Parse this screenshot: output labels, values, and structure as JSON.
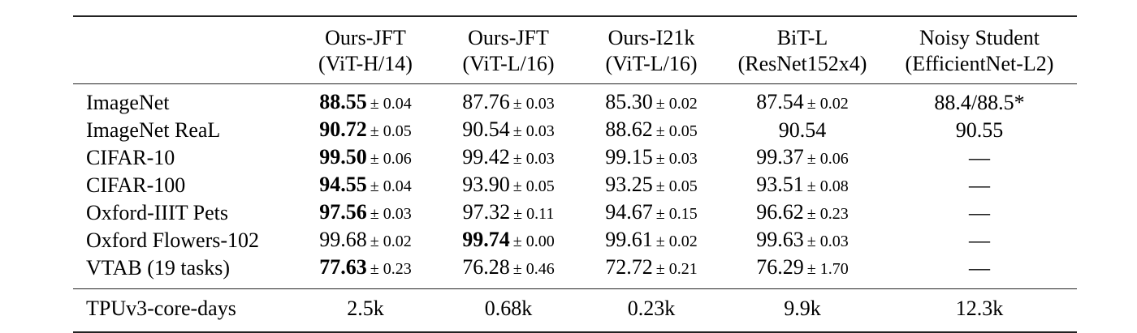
{
  "columns": [
    {
      "line1": "",
      "line2": ""
    },
    {
      "line1": "Ours-JFT",
      "line2": "(ViT-H/14)"
    },
    {
      "line1": "Ours-JFT",
      "line2": "(ViT-L/16)"
    },
    {
      "line1": "Ours-I21k",
      "line2": "(ViT-L/16)"
    },
    {
      "line1": "BiT-L",
      "line2": "(ResNet152x4)"
    },
    {
      "line1": "Noisy Student",
      "line2": "(EfficientNet-L2)"
    }
  ],
  "rows": [
    {
      "label": "ImageNet",
      "cells": [
        {
          "value": "88.55",
          "pm": "± 0.04",
          "best": true
        },
        {
          "value": "87.76",
          "pm": "± 0.03",
          "best": false
        },
        {
          "value": "85.30",
          "pm": "± 0.02",
          "best": false
        },
        {
          "value": "87.54",
          "pm": "± 0.02",
          "best": false
        },
        {
          "value": "88.4/88.5*",
          "pm": "",
          "best": false
        }
      ]
    },
    {
      "label": "ImageNet ReaL",
      "cells": [
        {
          "value": "90.72",
          "pm": "± 0.05",
          "best": true
        },
        {
          "value": "90.54",
          "pm": "± 0.03",
          "best": false
        },
        {
          "value": "88.62",
          "pm": "± 0.05",
          "best": false
        },
        {
          "value": "90.54",
          "pm": "",
          "best": false
        },
        {
          "value": "90.55",
          "pm": "",
          "best": false
        }
      ]
    },
    {
      "label": "CIFAR-10",
      "cells": [
        {
          "value": "99.50",
          "pm": "± 0.06",
          "best": true
        },
        {
          "value": "99.42",
          "pm": "± 0.03",
          "best": false
        },
        {
          "value": "99.15",
          "pm": "± 0.03",
          "best": false
        },
        {
          "value": "99.37",
          "pm": "± 0.06",
          "best": false
        },
        {
          "value": "—",
          "pm": "",
          "best": false
        }
      ]
    },
    {
      "label": "CIFAR-100",
      "cells": [
        {
          "value": "94.55",
          "pm": "± 0.04",
          "best": true
        },
        {
          "value": "93.90",
          "pm": "± 0.05",
          "best": false
        },
        {
          "value": "93.25",
          "pm": "± 0.05",
          "best": false
        },
        {
          "value": "93.51",
          "pm": "± 0.08",
          "best": false
        },
        {
          "value": "—",
          "pm": "",
          "best": false
        }
      ]
    },
    {
      "label": "Oxford-IIIT Pets",
      "cells": [
        {
          "value": "97.56",
          "pm": "± 0.03",
          "best": true
        },
        {
          "value": "97.32",
          "pm": "± 0.11",
          "best": false
        },
        {
          "value": "94.67",
          "pm": "± 0.15",
          "best": false
        },
        {
          "value": "96.62",
          "pm": "± 0.23",
          "best": false
        },
        {
          "value": "—",
          "pm": "",
          "best": false
        }
      ]
    },
    {
      "label": "Oxford Flowers-102",
      "cells": [
        {
          "value": "99.68",
          "pm": "± 0.02",
          "best": false
        },
        {
          "value": "99.74",
          "pm": "± 0.00",
          "best": true
        },
        {
          "value": "99.61",
          "pm": "± 0.02",
          "best": false
        },
        {
          "value": "99.63",
          "pm": "± 0.03",
          "best": false
        },
        {
          "value": "—",
          "pm": "",
          "best": false
        }
      ]
    },
    {
      "label": "VTAB (19 tasks)",
      "cells": [
        {
          "value": "77.63",
          "pm": "± 0.23",
          "best": true
        },
        {
          "value": "76.28",
          "pm": "± 0.46",
          "best": false
        },
        {
          "value": "72.72",
          "pm": "± 0.21",
          "best": false
        },
        {
          "value": "76.29",
          "pm": "± 1.70",
          "best": false
        },
        {
          "value": "—",
          "pm": "",
          "best": false
        }
      ]
    }
  ],
  "footer": {
    "label": "TPUv3-core-days",
    "values": [
      "2.5k",
      "0.68k",
      "0.23k",
      "9.9k",
      "12.3k"
    ]
  }
}
